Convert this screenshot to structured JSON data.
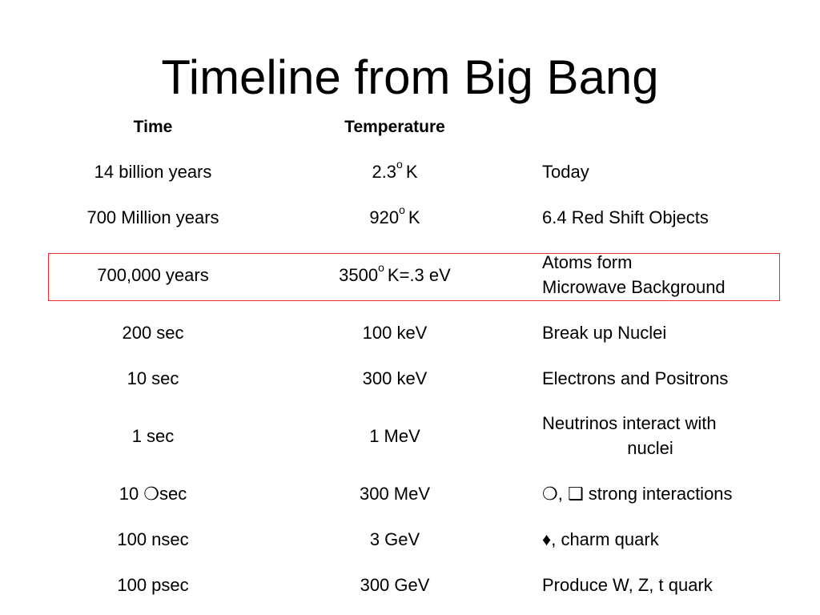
{
  "title": "Timeline from Big Bang",
  "table": {
    "header": [
      "Time",
      "Temperature"
    ],
    "rows": [
      {
        "time": "14 billion years",
        "temperature": {
          "value": "2.3",
          "degree": "o",
          "unit": "K"
        },
        "event": [
          "Today"
        ]
      },
      {
        "time": "700 Million years",
        "temperature": {
          "value": "920",
          "degree": "o",
          "unit": "K"
        },
        "event": [
          "6.4 Red Shift Objects"
        ]
      },
      {
        "time": "700,000 years",
        "temperature": {
          "value": "3500",
          "degree": "o",
          "unit": "K=.3 eV"
        },
        "event": [
          "Atoms form",
          "Microwave Background"
        ]
      },
      {
        "time": "200 sec",
        "temperature": "100 keV",
        "event": [
          "Break up Nuclei"
        ]
      },
      {
        "time": "10 sec",
        "temperature": "300 keV",
        "event": [
          "Electrons and Positrons"
        ]
      },
      {
        "time": "1 sec",
        "temperature": "1 MeV",
        "event": [
          "Neutrinos interact with",
          "nuclei"
        ]
      },
      {
        "time": "10 ❍sec",
        "temperature": "300 MeV",
        "event": [
          "❍, ❑ strong interactions"
        ]
      },
      {
        "time": "100 nsec",
        "temperature": "3 GeV",
        "event": [
          "♦, charm quark"
        ]
      },
      {
        "time": "100 psec",
        "temperature": "300 GeV",
        "event": [
          "Produce W, Z, t quark"
        ]
      }
    ]
  }
}
